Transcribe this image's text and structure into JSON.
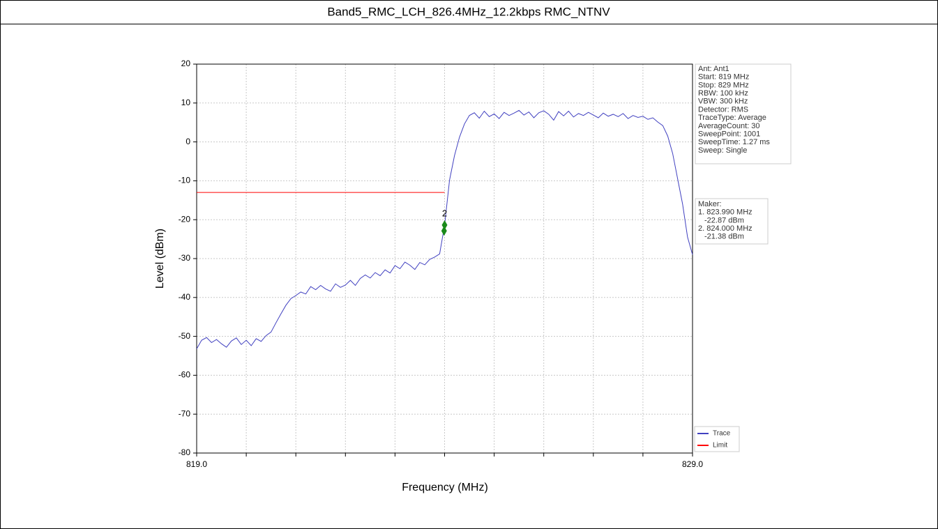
{
  "chart_data": {
    "type": "line",
    "title": "Band5_RMC_LCH_826.4MHz_12.2kbps RMC_NTNV",
    "xlabel": "Frequency (MHz)",
    "ylabel": "Level (dBm)",
    "xlim": [
      819,
      829
    ],
    "ylim": [
      -80,
      20
    ],
    "xticks": [
      {
        "value": 819,
        "label": "819.0"
      },
      {
        "value": 829,
        "label": "829.0"
      }
    ],
    "xgrid": [
      820,
      821,
      822,
      823,
      824,
      825,
      826,
      827,
      828
    ],
    "yticks": [
      -80,
      -70,
      -60,
      -50,
      -40,
      -30,
      -20,
      -10,
      0,
      10,
      20
    ],
    "grid": true,
    "series": [
      {
        "name": "Trace",
        "color": "#4040c0",
        "x": [
          819.0,
          819.1,
          819.2,
          819.3,
          819.4,
          819.5,
          819.6,
          819.7,
          819.8,
          819.9,
          820.0,
          820.1,
          820.2,
          820.3,
          820.4,
          820.5,
          820.6,
          820.7,
          820.8,
          820.9,
          821.0,
          821.1,
          821.2,
          821.3,
          821.4,
          821.5,
          821.6,
          821.7,
          821.8,
          821.9,
          822.0,
          822.1,
          822.2,
          822.3,
          822.4,
          822.5,
          822.6,
          822.7,
          822.8,
          822.9,
          823.0,
          823.1,
          823.2,
          823.3,
          823.4,
          823.5,
          823.6,
          823.7,
          823.8,
          823.9,
          824.0,
          824.1,
          824.2,
          824.3,
          824.4,
          824.5,
          824.6,
          824.7,
          824.8,
          824.9,
          825.0,
          825.1,
          825.2,
          825.3,
          825.4,
          825.5,
          825.6,
          825.7,
          825.8,
          825.9,
          826.0,
          826.1,
          826.2,
          826.3,
          826.4,
          826.5,
          826.6,
          826.7,
          826.8,
          826.9,
          827.0,
          827.1,
          827.2,
          827.3,
          827.4,
          827.5,
          827.6,
          827.7,
          827.8,
          827.9,
          828.0,
          828.1,
          828.2,
          828.3,
          828.4,
          828.5,
          828.6,
          828.7,
          828.8,
          828.9,
          829.0
        ],
        "values": [
          -53.2,
          -51.0,
          -50.3,
          -51.6,
          -50.8,
          -51.9,
          -52.8,
          -51.2,
          -50.4,
          -52.1,
          -51.0,
          -52.4,
          -50.6,
          -51.3,
          -49.8,
          -48.9,
          -46.5,
          -44.2,
          -42.0,
          -40.3,
          -39.5,
          -38.6,
          -39.1,
          -37.2,
          -38.0,
          -36.9,
          -37.8,
          -38.4,
          -36.5,
          -37.4,
          -36.8,
          -35.6,
          -36.9,
          -35.1,
          -34.2,
          -35.0,
          -33.6,
          -34.4,
          -32.9,
          -33.7,
          -31.8,
          -32.6,
          -30.9,
          -31.7,
          -32.8,
          -31.0,
          -31.6,
          -30.2,
          -29.6,
          -28.8,
          -21.4,
          -9.8,
          -3.5,
          1.2,
          4.6,
          6.8,
          7.5,
          6.1,
          7.9,
          6.5,
          7.2,
          6.0,
          7.6,
          6.8,
          7.4,
          8.1,
          6.9,
          7.7,
          6.2,
          7.5,
          8.0,
          7.1,
          5.6,
          7.8,
          6.7,
          7.9,
          6.4,
          7.3,
          6.8,
          7.6,
          6.9,
          6.2,
          7.4,
          6.6,
          7.1,
          6.5,
          7.3,
          6.0,
          6.8,
          6.3,
          6.6,
          5.8,
          6.2,
          5.1,
          4.2,
          1.5,
          -3.0,
          -9.5,
          -16.0,
          -24.5,
          -29.0
        ]
      },
      {
        "name": "Limit",
        "color": "#ff0000",
        "x": [
          819,
          824
        ],
        "values": [
          -13,
          -13
        ]
      }
    ],
    "markers": {
      "color": "#1a8a1a",
      "x": [
        823.99,
        824.0
      ],
      "values": [
        -22.87,
        -21.38
      ],
      "label": "2"
    },
    "info": [
      "Ant: Ant1",
      "Start: 819 MHz",
      "Stop: 829 MHz",
      "RBW: 100 kHz",
      "VBW: 300 kHz",
      "Detector: RMS",
      "TraceType: Average",
      "AverageCount: 30",
      "SweepPoint: 1001",
      "SweepTime: 1.27 ms",
      "Sweep: Single"
    ],
    "marker_info": [
      "Maker:",
      "1. 823.990 MHz",
      "-22.87 dBm",
      "2. 824.000 MHz",
      "-21.38 dBm"
    ]
  }
}
